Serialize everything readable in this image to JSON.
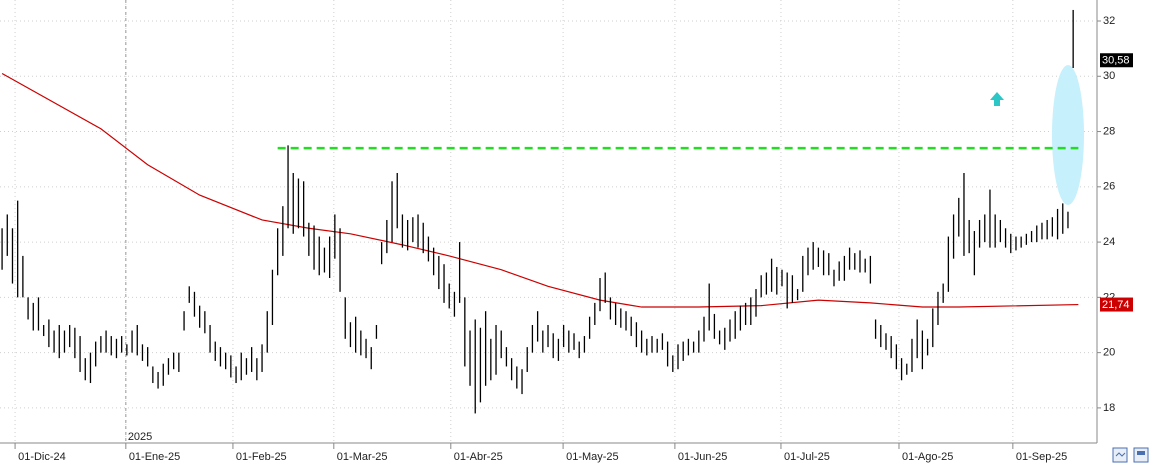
{
  "chart_data": {
    "type": "ohlc",
    "xlim": [
      -0.4,
      210.2
    ],
    "ylim": [
      16.73,
      32.76
    ],
    "yticks": [
      18,
      20,
      22,
      24,
      26,
      28,
      30,
      32
    ],
    "xticks": [
      {
        "value": 2.5,
        "label": "01-Dic-24"
      },
      {
        "value": 23.8,
        "label": "01-Ene-25"
      },
      {
        "value": 44.4,
        "label": "01-Feb-25"
      },
      {
        "value": 63.8,
        "label": "01-Mar-25"
      },
      {
        "value": 86.3,
        "label": "01-Abr-25"
      },
      {
        "value": 107.9,
        "label": "01-May-25"
      },
      {
        "value": 129.4,
        "label": "01-Jun-25"
      },
      {
        "value": 149.8,
        "label": "01-Jul-25"
      },
      {
        "value": 172.5,
        "label": "01-Ago-25"
      },
      {
        "value": 194.4,
        "label": "01-Sep-25"
      }
    ],
    "year_divider": {
      "value": 23.8,
      "label": "2025"
    },
    "grid": true,
    "bar_color": "#000000",
    "high": [
      24.5,
      25.0,
      24.5,
      25.5,
      23.5,
      22.0,
      21.8,
      22.0,
      21.0,
      21.2,
      20.8,
      21.0,
      20.8,
      21.0,
      20.9,
      20.6,
      19.8,
      20.0,
      20.4,
      20.6,
      20.8,
      20.6,
      20.5,
      20.6,
      20.3,
      20.8,
      21.0,
      20.3,
      20.2,
      19.5,
      19.3,
      19.6,
      19.8,
      20.0,
      20.0,
      21.5,
      22.4,
      22.2,
      21.7,
      21.5,
      21.0,
      20.4,
      20.2,
      20.0,
      19.9,
      19.5,
      20.0,
      19.8,
      20.2,
      19.8,
      20.3,
      21.5,
      23.0,
      24.5,
      25.3,
      27.5,
      26.5,
      26.3,
      26.2,
      24.7,
      24.6,
      24.2,
      23.8,
      24.2,
      25.0,
      24.5,
      22.0,
      21.1,
      21.3,
      20.8,
      20.5,
      20.2,
      21.0,
      24.0,
      24.8,
      26.2,
      26.5,
      25.0,
      24.8,
      24.9,
      25.0,
      24.7,
      24.2,
      23.8,
      23.5,
      23.2,
      22.5,
      22.2,
      24.0,
      22.0,
      20.8,
      21.2,
      20.9,
      21.5,
      20.5,
      21.0,
      20.8,
      20.2,
      19.8,
      19.5,
      19.4,
      20.2,
      21.0,
      21.5,
      20.8,
      21.0,
      20.7,
      20.5,
      21.0,
      20.8,
      20.7,
      20.4,
      20.6,
      21.3,
      21.8,
      22.7,
      22.9,
      22.0,
      21.8,
      21.6,
      21.5,
      21.3,
      21.1,
      20.8,
      20.5,
      20.6,
      20.5,
      20.7,
      20.4,
      19.9,
      20.3,
      20.4,
      20.5,
      20.4,
      20.8,
      21.3,
      22.5,
      21.4,
      20.8,
      20.9,
      21.2,
      21.5,
      21.7,
      21.8,
      22.0,
      22.3,
      22.8,
      22.9,
      23.4,
      23.1,
      23.0,
      22.9,
      22.8,
      22.3,
      23.5,
      23.8,
      24.0,
      23.8,
      23.7,
      23.6,
      23.0,
      23.3,
      23.5,
      23.8,
      23.6,
      23.7,
      23.4,
      23.5,
      21.2,
      21.0,
      20.7,
      20.6,
      20.3,
      19.8,
      19.6,
      20.5,
      21.2,
      20.8,
      20.5,
      21.6,
      22.2,
      22.5,
      24.2,
      25.0,
      25.6,
      26.5,
      24.8,
      24.4,
      24.8,
      25.0,
      25.9,
      25.0,
      24.8,
      24.5,
      24.3,
      24.2,
      24.2,
      24.3,
      24.4,
      24.6,
      24.7,
      24.8,
      24.9,
      25.2,
      25.4,
      25.1,
      32.4
    ],
    "low": [
      23.0,
      23.5,
      22.5,
      22.0,
      22.0,
      21.2,
      20.8,
      20.8,
      20.6,
      20.2,
      20.0,
      19.8,
      20.0,
      20.2,
      19.8,
      19.3,
      19.0,
      18.9,
      19.5,
      20.0,
      20.0,
      19.9,
      19.8,
      20.0,
      19.9,
      20.0,
      19.9,
      19.7,
      19.5,
      18.9,
      18.7,
      18.8,
      19.2,
      19.4,
      19.3,
      20.8,
      21.8,
      21.3,
      20.9,
      20.7,
      20.0,
      19.7,
      19.5,
      19.4,
      19.1,
      18.9,
      19.0,
      19.2,
      19.3,
      19.0,
      19.3,
      20.0,
      21.0,
      22.8,
      23.5,
      24.5,
      24.3,
      24.5,
      24.2,
      23.5,
      23.0,
      22.8,
      22.9,
      22.7,
      23.4,
      22.2,
      20.5,
      20.2,
      20.0,
      19.9,
      19.8,
      19.4,
      20.5,
      23.2,
      23.6,
      24.0,
      24.5,
      23.8,
      23.7,
      24.0,
      23.8,
      23.6,
      23.3,
      22.8,
      22.3,
      21.8,
      21.6,
      21.3,
      21.8,
      19.5,
      18.8,
      17.8,
      18.2,
      18.8,
      19.0,
      19.2,
      19.8,
      19.5,
      19.0,
      18.7,
      18.5,
      19.3,
      20.0,
      20.4,
      20.0,
      20.2,
      19.8,
      19.7,
      20.2,
      20.0,
      20.1,
      19.8,
      20.0,
      20.5,
      21.0,
      21.5,
      21.8,
      21.2,
      21.0,
      20.9,
      20.8,
      20.6,
      20.2,
      20.0,
      19.9,
      20.0,
      20.0,
      20.1,
      19.5,
      19.3,
      19.4,
      19.7,
      19.9,
      20.0,
      20.0,
      20.4,
      20.8,
      20.5,
      20.3,
      20.1,
      20.4,
      20.5,
      20.8,
      21.0,
      21.0,
      21.3,
      22.0,
      22.1,
      22.2,
      22.1,
      22.4,
      21.6,
      21.8,
      21.9,
      22.2,
      22.8,
      23.0,
      23.1,
      22.8,
      22.8,
      22.4,
      22.6,
      22.6,
      23.0,
      23.0,
      22.9,
      22.9,
      22.5,
      20.5,
      20.2,
      20.1,
      19.8,
      19.4,
      19.0,
      19.2,
      19.3,
      19.8,
      19.4,
      19.9,
      20.2,
      21.0,
      21.8,
      22.2,
      23.4,
      24.2,
      23.5,
      23.6,
      22.8,
      23.8,
      24.0,
      23.8,
      23.8,
      24.0,
      23.8,
      23.6,
      23.7,
      23.8,
      23.9,
      24.0,
      24.0,
      24.1,
      24.1,
      24.2,
      24.1,
      24.3,
      24.5,
      30.3
    ],
    "ma": {
      "color": "#cc0000",
      "x": [
        0,
        19,
        28,
        38,
        50,
        59,
        67,
        77,
        86,
        96,
        105,
        115,
        123,
        134,
        146,
        157,
        167,
        177,
        184,
        207
      ],
      "values": [
        30.1,
        28.1,
        26.8,
        25.7,
        24.8,
        24.5,
        24.3,
        23.9,
        23.5,
        23.0,
        22.4,
        21.9,
        21.65,
        21.65,
        21.7,
        21.9,
        21.8,
        21.65,
        21.65,
        21.74
      ],
      "last_label": {
        "value": 21.74,
        "label": "21,74"
      }
    },
    "level": {
      "color": "#22dd22",
      "x": [
        53,
        207
      ],
      "values": [
        27.4,
        27.4
      ]
    },
    "last_price": {
      "value": 30.58,
      "label": "30,58"
    }
  }
}
